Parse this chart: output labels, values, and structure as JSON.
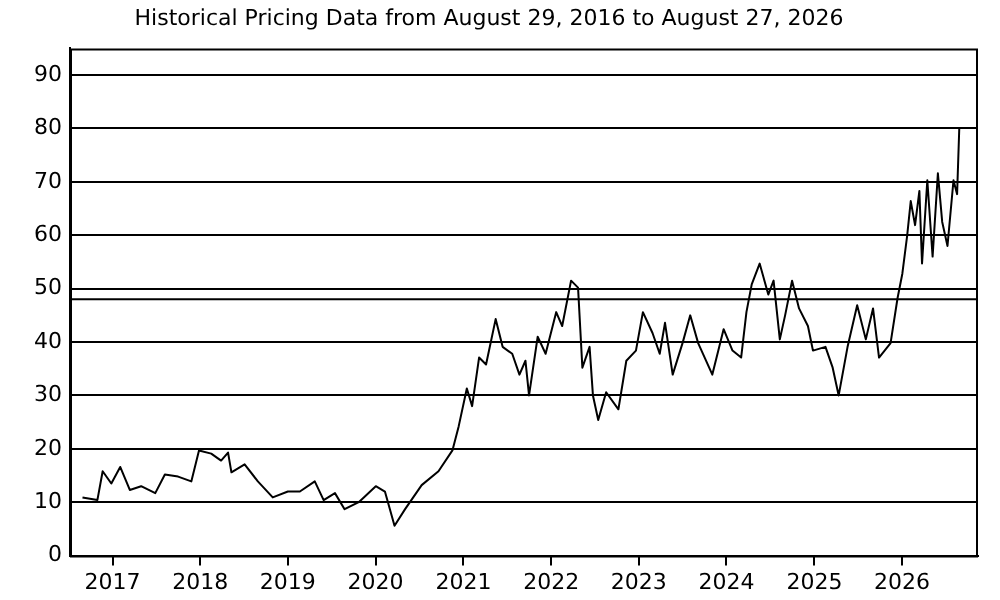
{
  "chart_data": {
    "type": "line",
    "title": "Historical Pricing Data from August 29, 2016 to August 27, 2026",
    "x": [
      "2016-08-29",
      "2016-10-30",
      "2016-11-21",
      "2016-12-27",
      "2017-02-02",
      "2017-03-14",
      "2017-04-30",
      "2017-06-28",
      "2017-08-07",
      "2017-10-01",
      "2017-11-25",
      "2017-12-27",
      "2018-02-16",
      "2018-03-29",
      "2018-04-27",
      "2018-05-11",
      "2018-07-05",
      "2018-08-29",
      "2018-10-30",
      "2019-01-01",
      "2019-02-20",
      "2019-04-23",
      "2019-05-30",
      "2019-07-16",
      "2019-08-25",
      "2019-10-23",
      "2020-01-02",
      "2020-02-09",
      "2020-03-20",
      "2020-05-03",
      "2020-07-11",
      "2020-09-19",
      "2020-11-16",
      "2020-12-12",
      "2021-01-15",
      "2021-02-06",
      "2021-03-07",
      "2021-04-05",
      "2021-05-15",
      "2021-06-13",
      "2021-07-23",
      "2021-08-22",
      "2021-09-16",
      "2021-10-01",
      "2021-11-06",
      "2021-12-09",
      "2022-01-22",
      "2022-02-16",
      "2022-03-25",
      "2022-04-23",
      "2022-05-11",
      "2022-06-10",
      "2022-06-24",
      "2022-07-16",
      "2022-08-18",
      "2022-10-08",
      "2022-11-10",
      "2022-12-20",
      "2023-01-18",
      "2023-02-27",
      "2023-03-29",
      "2023-04-20",
      "2023-05-22",
      "2023-07-02",
      "2023-08-03",
      "2023-09-05",
      "2023-11-03",
      "2023-12-20",
      "2024-01-26",
      "2024-03-02",
      "2024-03-24",
      "2024-04-15",
      "2024-05-18",
      "2024-06-23",
      "2024-07-15",
      "2024-08-10",
      "2024-09-01",
      "2024-09-30",
      "2024-10-29",
      "2024-12-05",
      "2024-12-26",
      "2025-02-16",
      "2025-03-18",
      "2025-04-12",
      "2025-05-19",
      "2025-06-28",
      "2025-08-03",
      "2025-09-02",
      "2025-09-27",
      "2025-11-14",
      "2025-12-13",
      "2026-01-02",
      "2026-01-22",
      "2026-02-06",
      "2026-02-24",
      "2026-03-14",
      "2026-03-25",
      "2026-04-16",
      "2026-05-08",
      "2026-05-30",
      "2026-06-17",
      "2026-07-09",
      "2026-08-03",
      "2026-08-18",
      "2026-08-27"
    ],
    "series": [
      {
        "color": "#000000",
        "values": [
          10.9,
          10.4,
          15.8,
          13.5,
          16.6,
          12.3,
          13,
          11.7,
          15.2,
          14.8,
          13.9,
          19.7,
          19.1,
          17.8,
          19.3,
          15.6,
          17.1,
          13.9,
          10.9,
          12,
          12,
          13.9,
          10.4,
          11.7,
          8.7,
          10,
          13,
          12,
          5.6,
          8.7,
          13.2,
          15.8,
          19.7,
          24.2,
          31.3,
          28,
          37.1,
          35.8,
          44.3,
          39.1,
          37.8,
          33.9,
          36.5,
          30,
          41,
          37.8,
          45.6,
          43,
          51.5,
          50.2,
          35.2,
          39.1,
          30,
          25.4,
          30.6,
          27.4,
          36.5,
          38.4,
          45.6,
          41.7,
          37.8,
          43.6,
          33.9,
          39.8,
          45,
          39.8,
          33.9,
          42.4,
          38.4,
          37.1,
          45.6,
          50.8,
          54.7,
          48.9,
          51.5,
          40.5,
          45,
          51.5,
          46.3,
          43,
          38.4,
          39.1,
          35.2,
          30,
          39.1,
          46.9,
          40.5,
          46.3,
          37.1,
          39.8,
          48.2,
          52.8,
          59.9,
          66.4,
          61.9,
          68.3,
          54.7,
          70.3,
          56,
          71.6,
          62.5,
          58,
          70.3,
          67.7,
          80
        ]
      }
    ],
    "xlim": [
      "2016-07-08",
      "2026-11-13"
    ],
    "xticks": [
      {
        "value": "2017-01-01",
        "label": "2017"
      },
      {
        "value": "2018-01-01",
        "label": "2018"
      },
      {
        "value": "2019-01-01",
        "label": "2019"
      },
      {
        "value": "2020-01-01",
        "label": "2020"
      },
      {
        "value": "2021-01-01",
        "label": "2021"
      },
      {
        "value": "2022-01-01",
        "label": "2022"
      },
      {
        "value": "2023-01-01",
        "label": "2023"
      },
      {
        "value": "2024-01-01",
        "label": "2024"
      },
      {
        "value": "2025-01-01",
        "label": "2025"
      },
      {
        "value": "2026-01-01",
        "label": "2026"
      }
    ],
    "ylim": [
      0,
      95
    ],
    "yticks": [
      0,
      10,
      20,
      30,
      40,
      50,
      60,
      70,
      80,
      90
    ],
    "grid": "y",
    "marker": "none",
    "line_style": "solid",
    "legend": false,
    "ref_lines": [
      {
        "axis": "y",
        "value": 48,
        "color": "#000000"
      }
    ]
  }
}
